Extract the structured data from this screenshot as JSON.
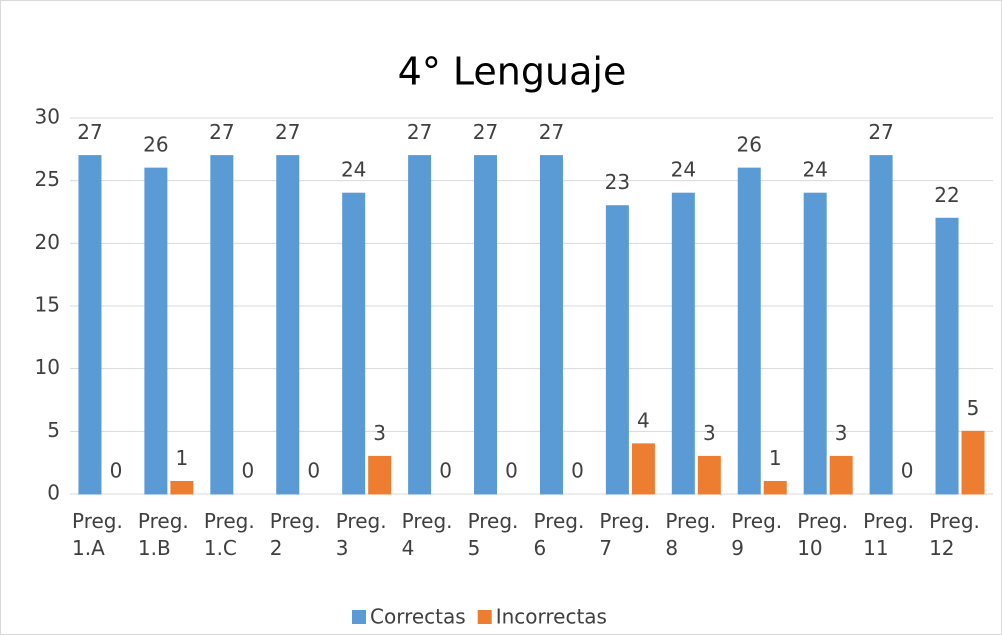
{
  "chart_data": {
    "type": "bar",
    "title": "4° Lenguaje",
    "categories": [
      "Preg. 1.A",
      "Preg. 1.B",
      "Preg. 1.C",
      "Preg. 2",
      "Preg. 3",
      "Preg. 4",
      "Preg. 5",
      "Preg. 6",
      "Preg. 7",
      "Preg. 8",
      "Preg. 9",
      "Preg. 10",
      "Preg. 11",
      "Preg. 12"
    ],
    "series": [
      {
        "name": "Correctas",
        "color": "#5b9bd5",
        "values": [
          27,
          26,
          27,
          27,
          24,
          27,
          27,
          27,
          23,
          24,
          26,
          24,
          27,
          22
        ]
      },
      {
        "name": "Incorrectas",
        "color": "#ed7d31",
        "values": [
          0,
          1,
          0,
          0,
          3,
          0,
          0,
          0,
          4,
          3,
          1,
          3,
          0,
          5
        ]
      }
    ],
    "ylim": [
      0,
      30
    ],
    "yticks": [
      0,
      5,
      10,
      15,
      20,
      25,
      30
    ],
    "grid": true,
    "legend": "bottom"
  }
}
